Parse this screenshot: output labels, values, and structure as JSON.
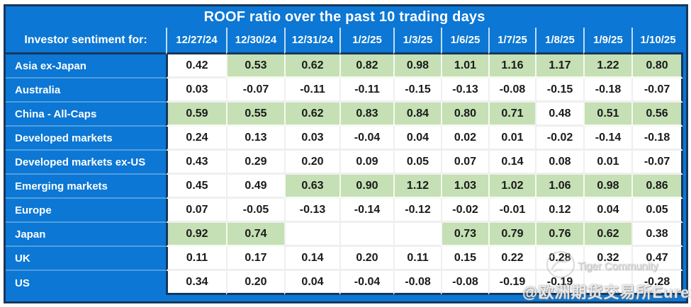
{
  "chart_data": {
    "type": "table",
    "title": "ROOF ratio over the past 10 trading days",
    "row_header": "Investor sentiment for:",
    "columns": [
      "12/27/24",
      "12/30/24",
      "12/31/24",
      "1/2/25",
      "1/3/25",
      "1/6/25",
      "1/7/25",
      "1/8/25",
      "1/9/25",
      "1/10/25"
    ],
    "rows": [
      {
        "label": "Asia ex-Japan",
        "values": [
          "0.42",
          "0.53",
          "0.62",
          "0.82",
          "0.98",
          "1.01",
          "1.16",
          "1.17",
          "1.22",
          "0.80"
        ]
      },
      {
        "label": "Australia",
        "values": [
          "0.03",
          "-0.07",
          "-0.11",
          "-0.11",
          "-0.15",
          "-0.13",
          "-0.08",
          "-0.15",
          "-0.18",
          "-0.07"
        ]
      },
      {
        "label": "China - All-Caps",
        "values": [
          "0.59",
          "0.55",
          "0.62",
          "0.83",
          "0.84",
          "0.80",
          "0.71",
          "0.48",
          "0.51",
          "0.56"
        ]
      },
      {
        "label": "Developed markets",
        "values": [
          "0.24",
          "0.13",
          "0.03",
          "-0.04",
          "0.04",
          "0.02",
          "0.01",
          "-0.02",
          "-0.14",
          "-0.18"
        ]
      },
      {
        "label": "Developed markets ex-US",
        "values": [
          "0.43",
          "0.29",
          "0.20",
          "0.09",
          "0.05",
          "0.07",
          "0.14",
          "0.08",
          "0.01",
          "-0.07"
        ]
      },
      {
        "label": "Emerging markets",
        "values": [
          "0.45",
          "0.49",
          "0.63",
          "0.90",
          "1.12",
          "1.03",
          "1.02",
          "1.06",
          "0.98",
          "0.86"
        ]
      },
      {
        "label": "Europe",
        "values": [
          "0.07",
          "-0.05",
          "-0.13",
          "-0.14",
          "-0.12",
          "-0.02",
          "-0.01",
          "0.12",
          "0.04",
          "0.05"
        ]
      },
      {
        "label": "Japan",
        "values": [
          "0.92",
          "0.74",
          "",
          "",
          "",
          "0.73",
          "0.79",
          "0.76",
          "0.62",
          "0.38"
        ]
      },
      {
        "label": "UK",
        "values": [
          "0.11",
          "0.17",
          "0.14",
          "0.20",
          "0.11",
          "0.15",
          "0.22",
          "0.28",
          "0.32",
          "0.47"
        ]
      },
      {
        "label": "US",
        "values": [
          "0.34",
          "0.20",
          "0.04",
          "-0.04",
          "-0.08",
          "-0.08",
          "-0.19",
          "-0.19",
          "",
          "-0.28"
        ]
      }
    ],
    "highlight_threshold": 0.5,
    "highlight_rule": "cells with value >= 0.5 are shaded light green; blank cells have no data",
    "legend_position": "none",
    "grid": true
  },
  "colors": {
    "header_blue": "#0c77d4",
    "outline_navy": "#17375c",
    "cell_green": "#c5e0b4",
    "cell_white": "#ffffff",
    "row_divider_blue": "#4f9fde",
    "text_white": "#ffffff",
    "text_dark": "#1a1a1a"
  },
  "watermark": {
    "logo": "tiger-paw-logo",
    "community": "Tiger Community",
    "handle": "@欧洲期货交易所Eurex"
  }
}
